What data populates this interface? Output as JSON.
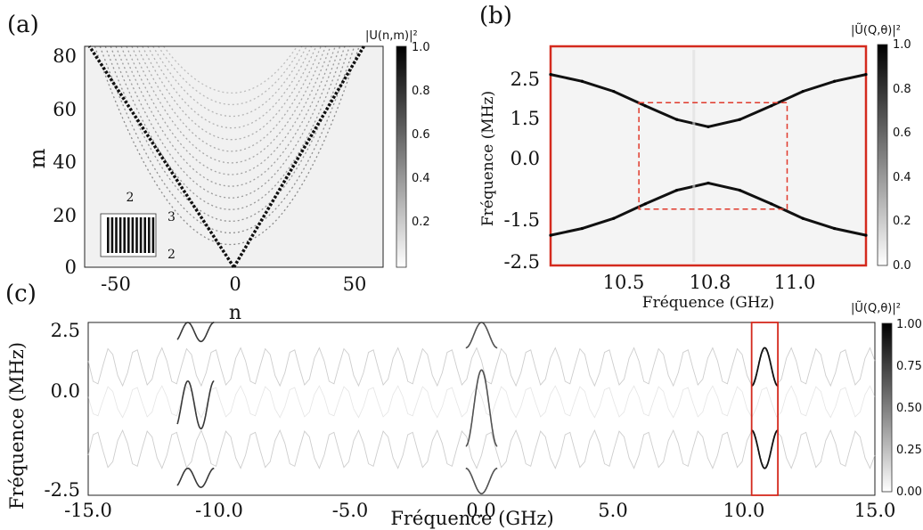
{
  "chart_data": [
    {
      "panel_label": "(a)",
      "type": "heatmap",
      "xlabel": "n",
      "ylabel": "m",
      "xlim": [
        -62,
        62
      ],
      "ylim": [
        0,
        84
      ],
      "x_ticks": [
        "-50",
        "0",
        "50"
      ],
      "y_ticks": [
        "0",
        "20",
        "40",
        "60",
        "80"
      ],
      "colorbar_label": "|U(n,m)|²",
      "colorbar_ticks": [
        "1.0",
        "0.8",
        "0.6",
        "0.4",
        "0.2"
      ],
      "colorbar_range": [
        0,
        1
      ],
      "inset_labels": [
        "2",
        "3",
        "2"
      ],
      "cone_edges": [
        {
          "x": [
            0,
            -60
          ],
          "y": [
            0,
            84
          ]
        },
        {
          "x": [
            0,
            54
          ],
          "y": [
            0,
            84
          ]
        }
      ]
    },
    {
      "panel_label": "(b)",
      "type": "line",
      "xlabel": "Fréquence (GHz)",
      "ylabel": "Fréquence (MHz)",
      "xlim": [
        10.3,
        11.3
      ],
      "ylim": [
        -2.75,
        2.7
      ],
      "x_ticks": [
        "10.5",
        "10.8",
        "11.0"
      ],
      "y_ticks": [
        "2.5",
        "1.5",
        "0.0",
        "-1.5",
        "-2.5"
      ],
      "colorbar_label": "|Ũ(Q,θ)|²",
      "colorbar_ticks": [
        "1.0",
        "0.8",
        "0.6",
        "0.4",
        "0.2",
        "0.0"
      ],
      "colorbar_range": [
        0,
        1
      ],
      "series": [
        {
          "x": [
            10.3,
            10.4,
            10.5,
            10.6,
            10.7,
            10.8,
            10.9,
            11.0,
            11.1,
            11.2,
            11.3
          ],
          "y": [
            2.0,
            1.83,
            1.58,
            1.22,
            0.88,
            0.7,
            0.88,
            1.22,
            1.58,
            1.83,
            2.0
          ]
        },
        {
          "x": [
            10.3,
            10.4,
            10.5,
            10.6,
            10.7,
            10.8,
            10.9,
            11.0,
            11.1,
            11.2,
            11.3
          ],
          "y": [
            -2.0,
            -1.83,
            -1.58,
            -1.22,
            -0.88,
            -0.7,
            -0.88,
            -1.22,
            -1.58,
            -1.83,
            -2.0
          ]
        }
      ],
      "highlight_box": {
        "x": [
          10.58,
          11.05
        ],
        "y": [
          -1.35,
          1.3
        ]
      }
    },
    {
      "panel_label": "(c)",
      "type": "line",
      "xlabel": "Fréquence (GHz)",
      "ylabel": "Fréquence (MHz)",
      "xlim": [
        -15.0,
        15.0
      ],
      "ylim": [
        -2.75,
        2.7
      ],
      "x_ticks": [
        "-15.0",
        "-10.0",
        "-5.0",
        "0.0",
        "5.0",
        "10.0",
        "15.0"
      ],
      "y_ticks": [
        "2.5",
        "0.0",
        "-2.5"
      ],
      "colorbar_label": "|Ũ(Q,θ)|²",
      "colorbar_ticks": [
        "1.00",
        "0.75",
        "0.50",
        "0.25",
        "0.00"
      ],
      "colorbar_range": [
        0,
        1
      ],
      "highlight_box": {
        "x": [
          10.3,
          11.3
        ],
        "y": [
          -2.75,
          2.7
        ]
      }
    }
  ]
}
